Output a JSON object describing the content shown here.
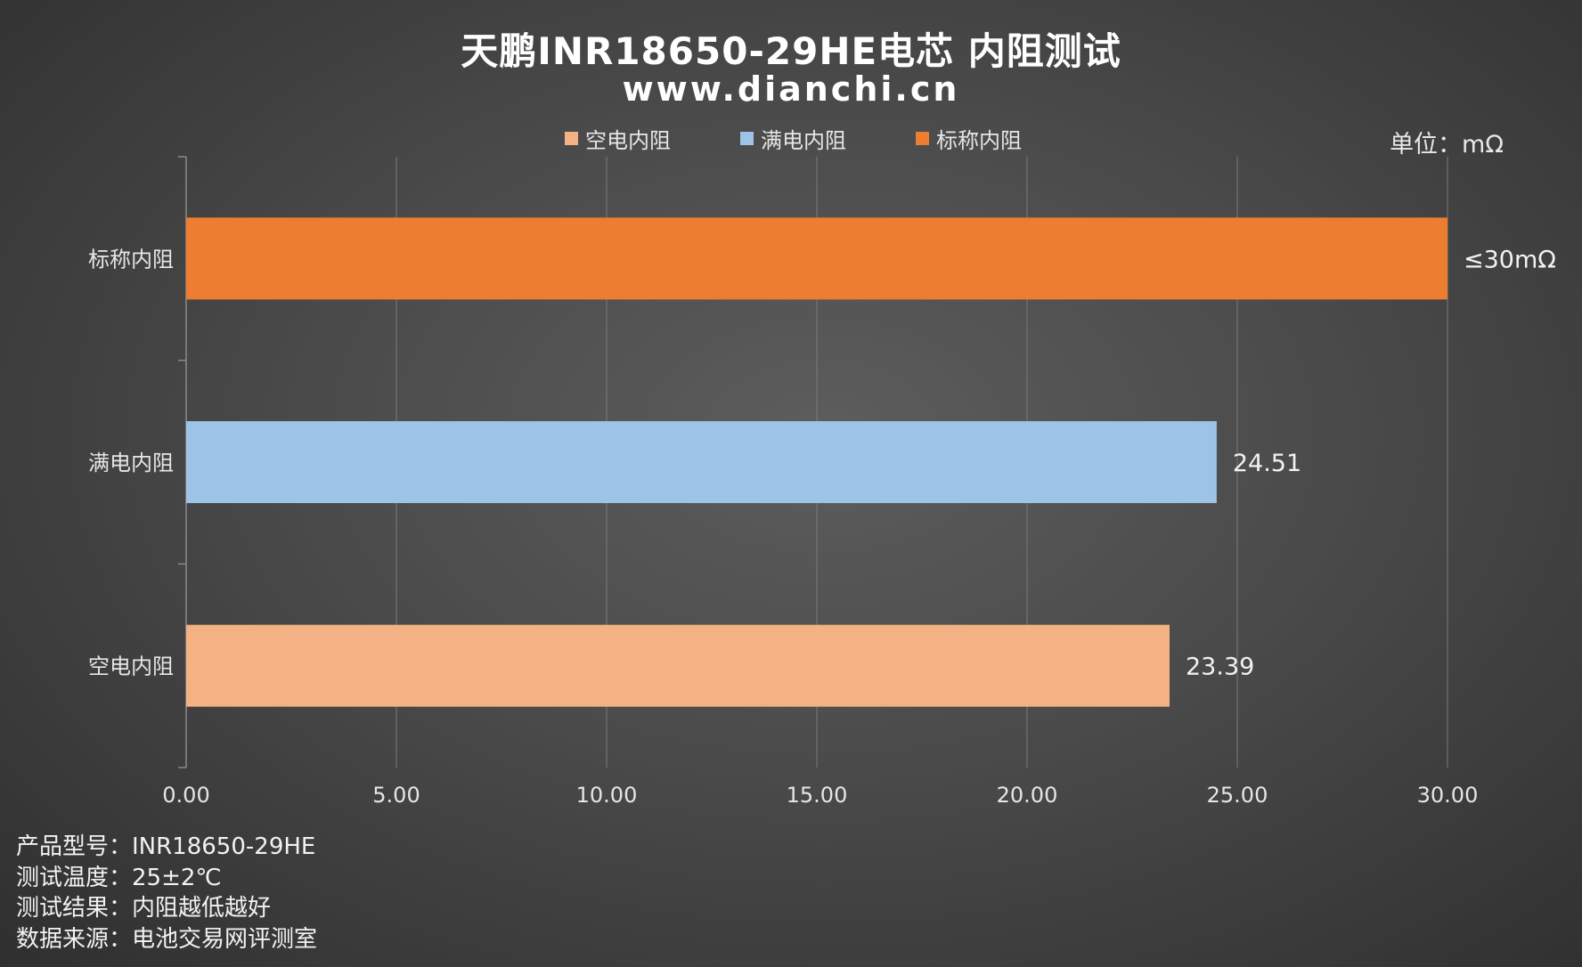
{
  "chart_data": {
    "type": "bar",
    "orientation": "horizontal",
    "title": "天鹏INR18650-29HE电芯 内阻测试",
    "subtitle": "www.dianchi.cn",
    "unit_label": "单位：mΩ",
    "categories": [
      "标称内阻",
      "满电内阻",
      "空电内阻"
    ],
    "values": [
      30,
      24.51,
      23.39
    ],
    "data_labels": [
      "≤30mΩ",
      "24.51",
      "23.39"
    ],
    "colors": [
      "#ed7d31",
      "#9dc3e6",
      "#f4b183"
    ],
    "xlim": [
      0,
      30
    ],
    "x_ticks": [
      0,
      5,
      10,
      15,
      20,
      25,
      30
    ],
    "x_tick_labels": [
      "0.00",
      "5.00",
      "10.00",
      "15.00",
      "20.00",
      "25.00",
      "30.00"
    ],
    "grid": true,
    "legend_position": "top",
    "legend": [
      {
        "name": "空电内阻",
        "color": "#f4b183"
      },
      {
        "name": "满电内阻",
        "color": "#9dc3e6"
      },
      {
        "name": "标称内阻",
        "color": "#ed7d31"
      }
    ]
  },
  "notes": [
    "产品型号：INR18650-29HE",
    "测试温度：25±2℃",
    "测试结果：内阻越低越好",
    "数据来源：电池交易网评测室"
  ]
}
